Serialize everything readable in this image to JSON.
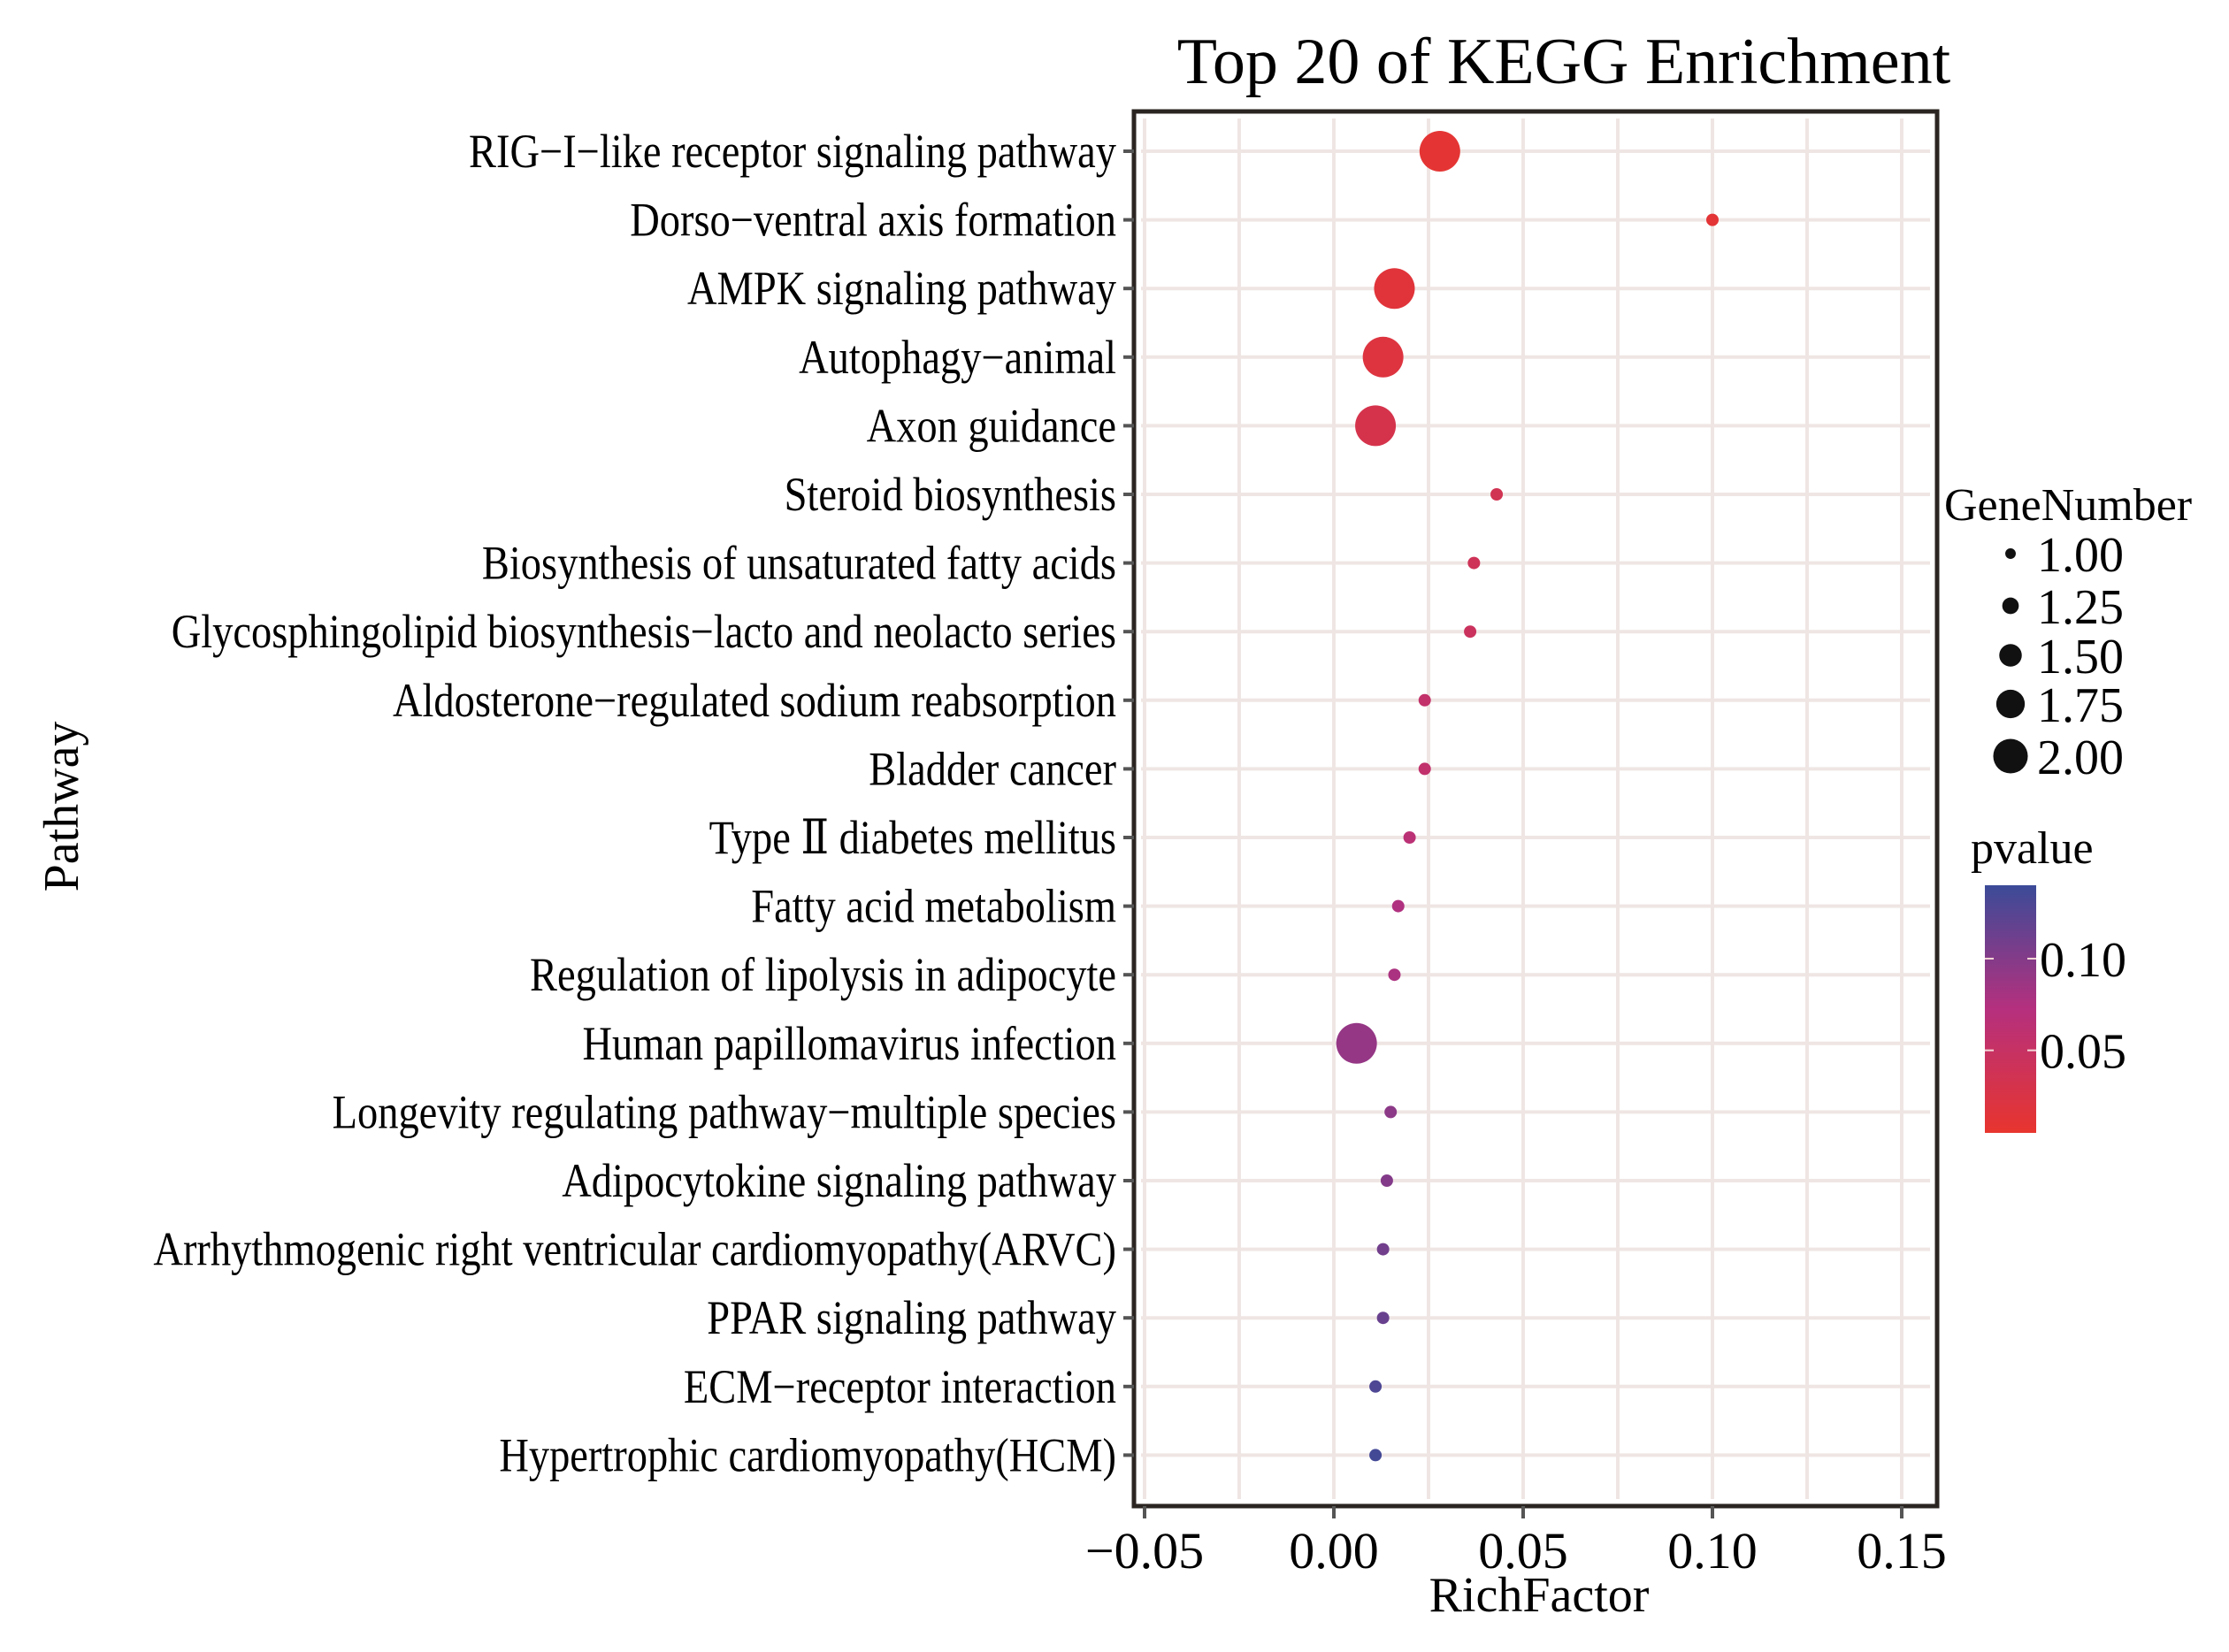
{
  "chart_data": {
    "type": "scatter",
    "title": "Top 20 of KEGG Enrichment",
    "xlabel": "RichFactor",
    "ylabel": "Pathway",
    "xlim": [
      -0.05,
      0.15
    ],
    "x_ticks": [
      "-0.05",
      "0.00",
      "0.05",
      "0.10",
      "0.15"
    ],
    "x_tick_values": [
      -0.05,
      0.0,
      0.05,
      0.1,
      0.15
    ],
    "grid": true,
    "points": [
      {
        "pathway": "RIG−I−like receptor signaling pathway",
        "rich_factor": 0.028,
        "gene_number": 2,
        "pvalue": 0.01
      },
      {
        "pathway": "Dorso−ventral axis formation",
        "rich_factor": 0.1,
        "gene_number": 1,
        "pvalue": 0.012
      },
      {
        "pathway": "AMPK signaling pathway",
        "rich_factor": 0.016,
        "gene_number": 2,
        "pvalue": 0.015
      },
      {
        "pathway": "Autophagy−animal",
        "rich_factor": 0.013,
        "gene_number": 2,
        "pvalue": 0.02
      },
      {
        "pathway": "Axon guidance",
        "rich_factor": 0.011,
        "gene_number": 2,
        "pvalue": 0.03
      },
      {
        "pathway": "Steroid biosynthesis",
        "rich_factor": 0.043,
        "gene_number": 1,
        "pvalue": 0.035
      },
      {
        "pathway": "Biosynthesis of unsaturated fatty acids",
        "rich_factor": 0.037,
        "gene_number": 1,
        "pvalue": 0.04
      },
      {
        "pathway": "Glycosphingolipid biosynthesis−lacto and neolacto series",
        "rich_factor": 0.036,
        "gene_number": 1,
        "pvalue": 0.045
      },
      {
        "pathway": "Aldosterone−regulated sodium reabsorption",
        "rich_factor": 0.024,
        "gene_number": 1,
        "pvalue": 0.055
      },
      {
        "pathway": "Bladder cancer",
        "rich_factor": 0.024,
        "gene_number": 1,
        "pvalue": 0.057
      },
      {
        "pathway": "Type Ⅱ diabetes mellitus",
        "rich_factor": 0.02,
        "gene_number": 1,
        "pvalue": 0.065
      },
      {
        "pathway": "Fatty acid metabolism",
        "rich_factor": 0.017,
        "gene_number": 1,
        "pvalue": 0.075
      },
      {
        "pathway": "Regulation of lipolysis in adipocyte",
        "rich_factor": 0.016,
        "gene_number": 1,
        "pvalue": 0.078
      },
      {
        "pathway": "Human papillomavirus infection",
        "rich_factor": 0.006,
        "gene_number": 2,
        "pvalue": 0.09
      },
      {
        "pathway": "Longevity regulating pathway−multiple species",
        "rich_factor": 0.015,
        "gene_number": 1,
        "pvalue": 0.095
      },
      {
        "pathway": "Adipocytokine signaling pathway",
        "rich_factor": 0.014,
        "gene_number": 1,
        "pvalue": 0.1
      },
      {
        "pathway": "Arrhythmogenic right ventricular cardiomyopathy(ARVC)",
        "rich_factor": 0.013,
        "gene_number": 1,
        "pvalue": 0.11
      },
      {
        "pathway": "PPAR signaling pathway",
        "rich_factor": 0.013,
        "gene_number": 1,
        "pvalue": 0.115
      },
      {
        "pathway": "ECM−receptor interaction",
        "rich_factor": 0.011,
        "gene_number": 1,
        "pvalue": 0.13
      },
      {
        "pathway": "Hypertrophic cardiomyopathy(HCM)",
        "rich_factor": 0.011,
        "gene_number": 1,
        "pvalue": 0.135
      }
    ],
    "size_legend": {
      "title": "GeneNumber",
      "values": [
        1.0,
        1.25,
        1.5,
        1.75,
        2.0
      ],
      "labels": [
        "1.00",
        "1.25",
        "1.50",
        "1.75",
        "2.00"
      ]
    },
    "color_legend": {
      "title": "pvalue",
      "range": [
        0.005,
        0.14
      ],
      "ticks": [
        0.1,
        0.05
      ],
      "tick_labels": [
        "0.10",
        "0.05"
      ],
      "low_color": "#e8352e",
      "mid_color": "#b5307e",
      "high_color": "#3b4b98"
    },
    "legend_position": "right"
  }
}
